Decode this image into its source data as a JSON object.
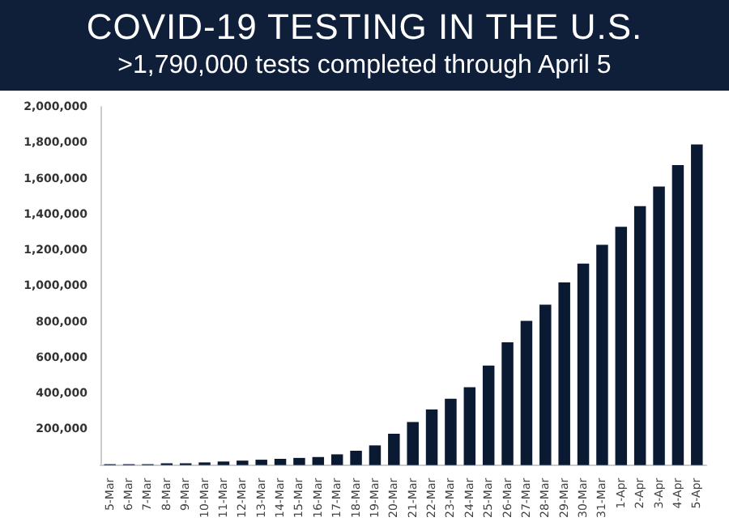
{
  "chart_data": {
    "type": "bar",
    "title": "COVID-19 TESTING IN THE U.S.",
    "subtitle": ">1,790,000 tests completed through April 5",
    "categories": [
      "5-Mar",
      "6-Mar",
      "7-Mar",
      "8-Mar",
      "9-Mar",
      "10-Mar",
      "11-Mar",
      "12-Mar",
      "13-Mar",
      "14-Mar",
      "15-Mar",
      "16-Mar",
      "17-Mar",
      "18-Mar",
      "19-Mar",
      "20-Mar",
      "21-Mar",
      "22-Mar",
      "23-Mar",
      "24-Mar",
      "25-Mar",
      "26-Mar",
      "27-Mar",
      "28-Mar",
      "29-Mar",
      "30-Mar",
      "31-Mar",
      "1-Apr",
      "2-Apr",
      "3-Apr",
      "4-Apr",
      "5-Apr"
    ],
    "values": [
      5000,
      5000,
      5000,
      10000,
      10000,
      15000,
      20000,
      25000,
      30000,
      35000,
      40000,
      45000,
      60000,
      80000,
      110000,
      175000,
      240000,
      310000,
      370000,
      435000,
      555000,
      685000,
      805000,
      895000,
      1020000,
      1125000,
      1230000,
      1330000,
      1445000,
      1555000,
      1675000,
      1790000
    ],
    "color": "#0b1a33",
    "ylim": [
      0,
      2000000
    ],
    "yticks": [
      {
        "value": 200000,
        "label": "200,000"
      },
      {
        "value": 400000,
        "label": "400,000"
      },
      {
        "value": 600000,
        "label": "600,000"
      },
      {
        "value": 800000,
        "label": "800,000"
      },
      {
        "value": 1000000,
        "label": "1,000,000"
      },
      {
        "value": 1200000,
        "label": "1,200,000"
      },
      {
        "value": 1400000,
        "label": "1,400,000"
      },
      {
        "value": 1600000,
        "label": "1,600,000"
      },
      {
        "value": 1800000,
        "label": "1,800,000"
      },
      {
        "value": 2000000,
        "label": "2,000,000"
      }
    ],
    "grid": false
  }
}
